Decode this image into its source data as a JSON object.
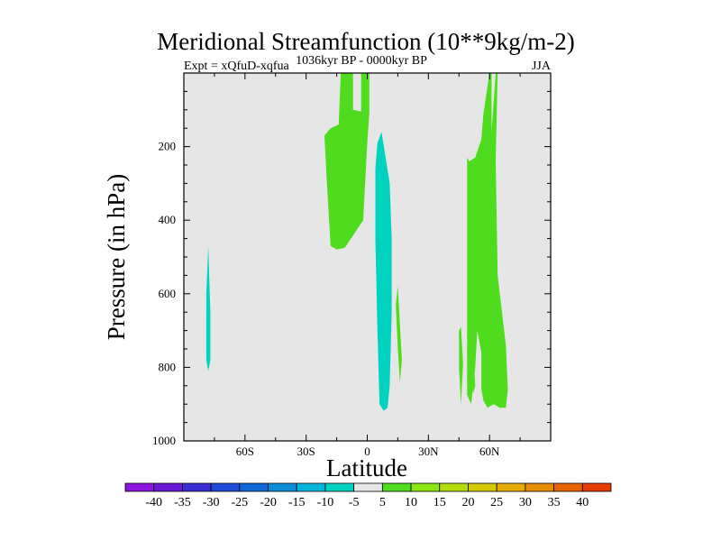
{
  "chart_data": {
    "type": "filled-contour",
    "title": "Meridional Streamfunction (10**9kg/m-2)",
    "subtitle": "1036kyr BP - 0000kyr BP",
    "left_label": "Expt = xQfuD-xqfua",
    "right_label": "JJA",
    "xlabel": "Latitude",
    "ylabel": "Pressure (in hPa)",
    "xlim": [
      -90,
      90
    ],
    "ylim": [
      1000,
      0
    ],
    "x_ticks": [
      {
        "value": -60,
        "label": "60S"
      },
      {
        "value": -30,
        "label": "30S"
      },
      {
        "value": 0,
        "label": "0"
      },
      {
        "value": 30,
        "label": "30N"
      },
      {
        "value": 60,
        "label": "60N"
      }
    ],
    "y_ticks": [
      {
        "value": 200,
        "label": "200"
      },
      {
        "value": 400,
        "label": "400"
      },
      {
        "value": 600,
        "label": "600"
      },
      {
        "value": 800,
        "label": "800"
      },
      {
        "value": 1000,
        "label": "1000"
      }
    ],
    "background_color": "#e6e6e6",
    "colorbar": {
      "labels": [
        "-40",
        "-35",
        "-30",
        "-25",
        "-20",
        "-15",
        "-10",
        "-5",
        "5",
        "10",
        "15",
        "20",
        "25",
        "30",
        "35",
        "40"
      ],
      "colors": [
        "#8c14dc",
        "#6a1ad6",
        "#3c2ed2",
        "#1e4ad8",
        "#1068d8",
        "#0a8cd8",
        "#00b4dc",
        "#00d2c0",
        "#e6e6e6",
        "#50dc1e",
        "#8ce614",
        "#b4dc0a",
        "#d2c800",
        "#e6aa00",
        "#e68c00",
        "#e66400",
        "#e63c00"
      ]
    },
    "regions": [
      {
        "name": "nh-tropical-band",
        "range": "5 to 10",
        "color": "#50dc1e",
        "points": [
          [
            -13,
            0
          ],
          [
            -7,
            0
          ],
          [
            -7,
            100
          ],
          [
            -3,
            105
          ],
          [
            -3,
            0
          ],
          [
            1,
            0
          ],
          [
            1,
            110
          ],
          [
            0,
            190
          ],
          [
            -2,
            400
          ],
          [
            -8,
            450
          ],
          [
            -11,
            475
          ],
          [
            -15,
            480
          ],
          [
            -18,
            470
          ],
          [
            -20,
            280
          ],
          [
            -21,
            170
          ],
          [
            -18,
            150
          ],
          [
            -14,
            140
          ]
        ]
      },
      {
        "name": "equatorial-minimum",
        "range": "-10 to -5",
        "color": "#00d2c0",
        "points": [
          [
            7,
            160
          ],
          [
            8,
            195
          ],
          [
            11,
            300
          ],
          [
            12,
            450
          ],
          [
            12,
            650
          ],
          [
            11,
            850
          ],
          [
            10,
            910
          ],
          [
            8,
            918
          ],
          [
            6,
            900
          ],
          [
            5,
            700
          ],
          [
            4,
            450
          ],
          [
            4,
            260
          ],
          [
            5,
            190
          ]
        ]
      },
      {
        "name": "nh-subtropical-cell",
        "range": "5 to 10",
        "color": "#50dc1e",
        "points": [
          [
            15,
            580
          ],
          [
            17,
            780
          ],
          [
            16,
            840
          ],
          [
            15,
            750
          ],
          [
            14,
            630
          ]
        ]
      },
      {
        "name": "sh-polar-strip",
        "range": "-10 to -5",
        "color": "#00d2c0",
        "points": [
          [
            -78,
            470
          ],
          [
            -77,
            650
          ],
          [
            -77,
            780
          ],
          [
            -78,
            810
          ],
          [
            -79,
            780
          ],
          [
            -79,
            600
          ]
        ]
      },
      {
        "name": "nh-midlatitude-main",
        "range": "5 to 10",
        "color": "#50dc1e",
        "points": [
          [
            50,
            240
          ],
          [
            53,
            230
          ],
          [
            56,
            180
          ],
          [
            57,
            110
          ],
          [
            60,
            0
          ],
          [
            61,
            0
          ],
          [
            61,
            160
          ],
          [
            63,
            0
          ],
          [
            64,
            0
          ],
          [
            63,
            240
          ],
          [
            64,
            550
          ],
          [
            68,
            740
          ],
          [
            69,
            860
          ],
          [
            68,
            910
          ],
          [
            65,
            910
          ],
          [
            62,
            900
          ],
          [
            59,
            910
          ],
          [
            57,
            890
          ],
          [
            56,
            860
          ],
          [
            56,
            760
          ],
          [
            54,
            700
          ],
          [
            53,
            800
          ],
          [
            51,
            900
          ],
          [
            49,
            875
          ],
          [
            49,
            500
          ],
          [
            49,
            230
          ]
        ]
      },
      {
        "name": "nh-midlatitude-sliver",
        "range": "5 to 10",
        "color": "#50dc1e",
        "points": [
          [
            46,
            690
          ],
          [
            47,
            790
          ],
          [
            46,
            900
          ],
          [
            45,
            800
          ],
          [
            45,
            700
          ]
        ]
      },
      {
        "name": "nh-midlatitude-sliver-2",
        "range": "5 to 10",
        "color": "#50dc1e",
        "points": [
          [
            52,
            760
          ],
          [
            53,
            850
          ],
          [
            52,
            870
          ],
          [
            51,
            820
          ]
        ]
      }
    ]
  }
}
